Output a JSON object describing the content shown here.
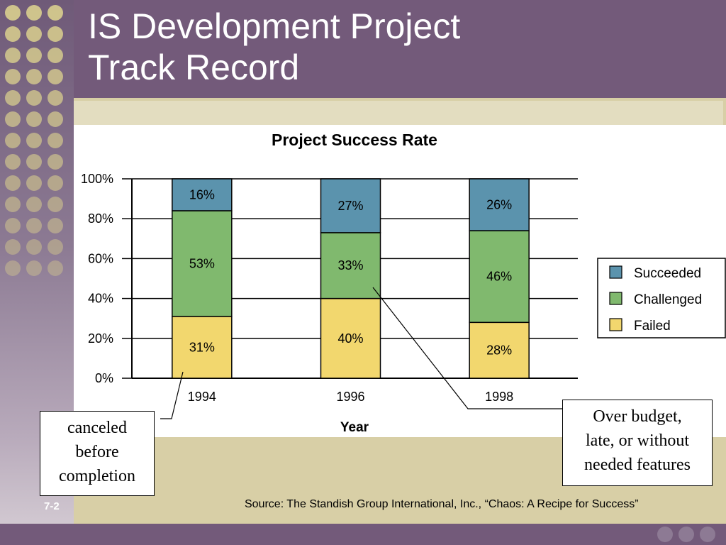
{
  "slide": {
    "title_line_1": "IS Development Project",
    "title_line_2": "Track Record",
    "slide_number": "7-2",
    "source": "Source: The Standish Group International, Inc., “Chaos: A Recipe for Success”"
  },
  "callouts": {
    "canceled": [
      "canceled",
      "before",
      "completion"
    ],
    "over_budget": [
      "Over budget,",
      "late, or without",
      "needed features"
    ]
  },
  "colors": {
    "succeeded": "#5b93ad",
    "challenged": "#80b96e",
    "failed": "#f2d76e",
    "title_band": "#735a7a"
  },
  "chart_data": {
    "type": "bar",
    "stacked": true,
    "title": "Project Success Rate",
    "xlabel": "Year",
    "ylabel": "",
    "categories": [
      "1994",
      "1996",
      "1998"
    ],
    "series": [
      {
        "name": "Failed",
        "values": [
          31,
          40,
          28
        ],
        "labels": [
          "31%",
          "40%",
          "28%"
        ]
      },
      {
        "name": "Challenged",
        "values": [
          53,
          33,
          46
        ],
        "labels": [
          "53%",
          "33%",
          "46%"
        ]
      },
      {
        "name": "Succeeded",
        "values": [
          16,
          27,
          26
        ],
        "labels": [
          "16%",
          "27%",
          "26%"
        ]
      }
    ],
    "legend_order": [
      "Succeeded",
      "Challenged",
      "Failed"
    ],
    "ylim": [
      0,
      100
    ],
    "yticks": [
      "0%",
      "20%",
      "40%",
      "60%",
      "80%",
      "100%"
    ],
    "grid": true,
    "legend_position": "right"
  }
}
